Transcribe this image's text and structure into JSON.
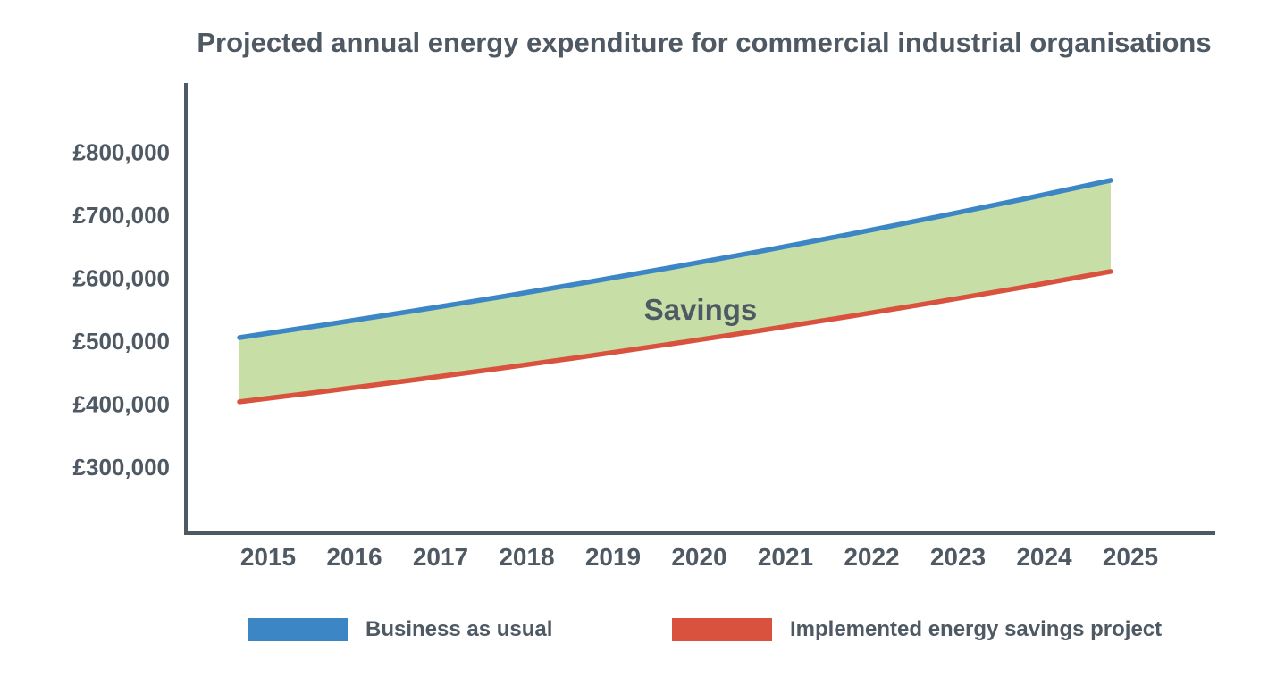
{
  "chart_data": {
    "type": "line",
    "title": "Projected annual energy expenditure for commercial industrial organisations",
    "x": [
      2015,
      2016,
      2017,
      2018,
      2019,
      2020,
      2021,
      2022,
      2023,
      2024,
      2025
    ],
    "series": [
      {
        "name": "Business as usual",
        "color": "#3d86c6",
        "values": [
          505000,
          525700,
          547300,
          569700,
          593100,
          617400,
          642700,
          669000,
          696500,
          725000,
          754700
        ]
      },
      {
        "name": "Implemented energy savings project",
        "color": "#d8523d",
        "values": [
          403000,
          420000,
          437800,
          456300,
          475600,
          495800,
          516700,
          538600,
          561400,
          585100,
          610000
        ]
      }
    ],
    "band": {
      "label": "Savings",
      "fill": "#c7dfa6",
      "between": [
        "Business as usual",
        "Implemented energy savings project"
      ]
    },
    "y_axis": {
      "tick_labels": [
        "£800,000",
        "£700,000",
        "£600,000",
        "£500,000",
        "£400,000",
        "£300,000"
      ],
      "tick_values": [
        800000,
        700000,
        600000,
        500000,
        400000,
        300000
      ],
      "currency": "GBP"
    },
    "xlabel": "",
    "ylabel": "",
    "ylim": [
      250000,
      860000
    ],
    "grid": false,
    "legend_position": "bottom",
    "text_color": "#4f5963",
    "axis_color": "#4f5963"
  }
}
